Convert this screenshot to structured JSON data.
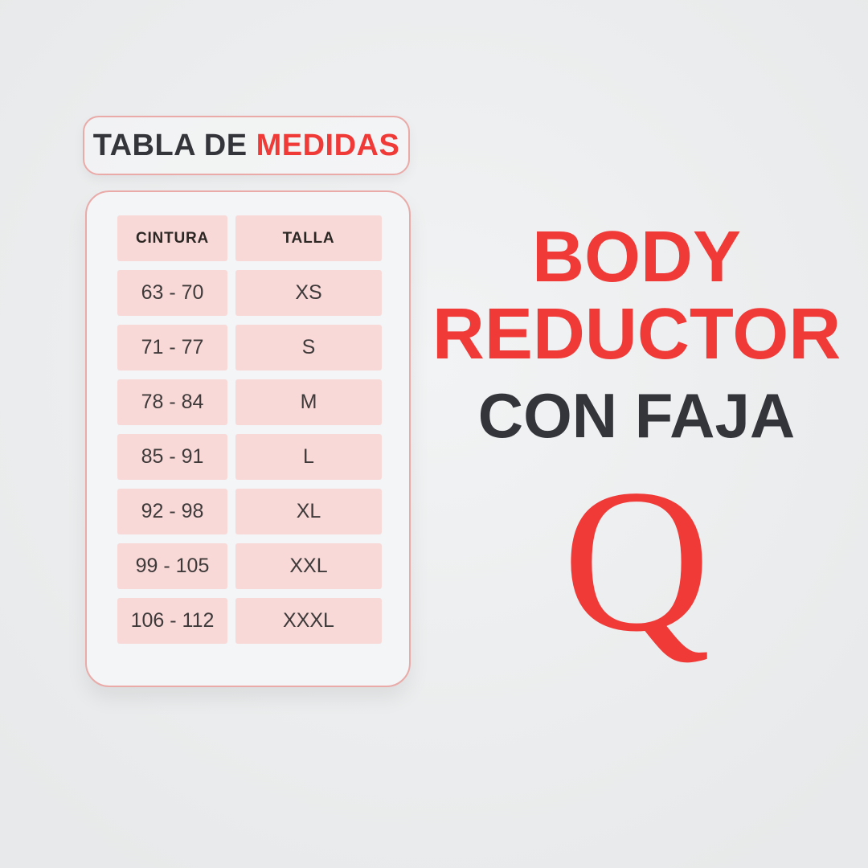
{
  "colors": {
    "red": "#f03a38",
    "charcoal": "#34353a",
    "cell_pink": "#f8d9d8",
    "border_rose": "#e9aaa8",
    "panel_bg": "#f3f5f6",
    "bg_inner": "#f1f3f4",
    "bg_outer": "#e7e9ea",
    "cell_text": "#3f3a3a"
  },
  "title_box": {
    "text_dark": "TABLA DE",
    "text_red": "MEDIDAS"
  },
  "product": {
    "line1": "BODY",
    "line2": "REDUCTOR",
    "subtitle": "CON FAJA",
    "brand_letter": "Q"
  },
  "chart_data": {
    "type": "table",
    "title": "TABLA DE MEDIDAS",
    "columns": [
      "CINTURA",
      "TALLA"
    ],
    "rows": [
      [
        "63 - 70",
        "XS"
      ],
      [
        "71 - 77",
        "S"
      ],
      [
        "78 - 84",
        "M"
      ],
      [
        "85 - 91",
        "L"
      ],
      [
        "92 - 98",
        "XL"
      ],
      [
        "99 - 105",
        "XXL"
      ],
      [
        "106 - 112",
        "XXXL"
      ]
    ]
  }
}
